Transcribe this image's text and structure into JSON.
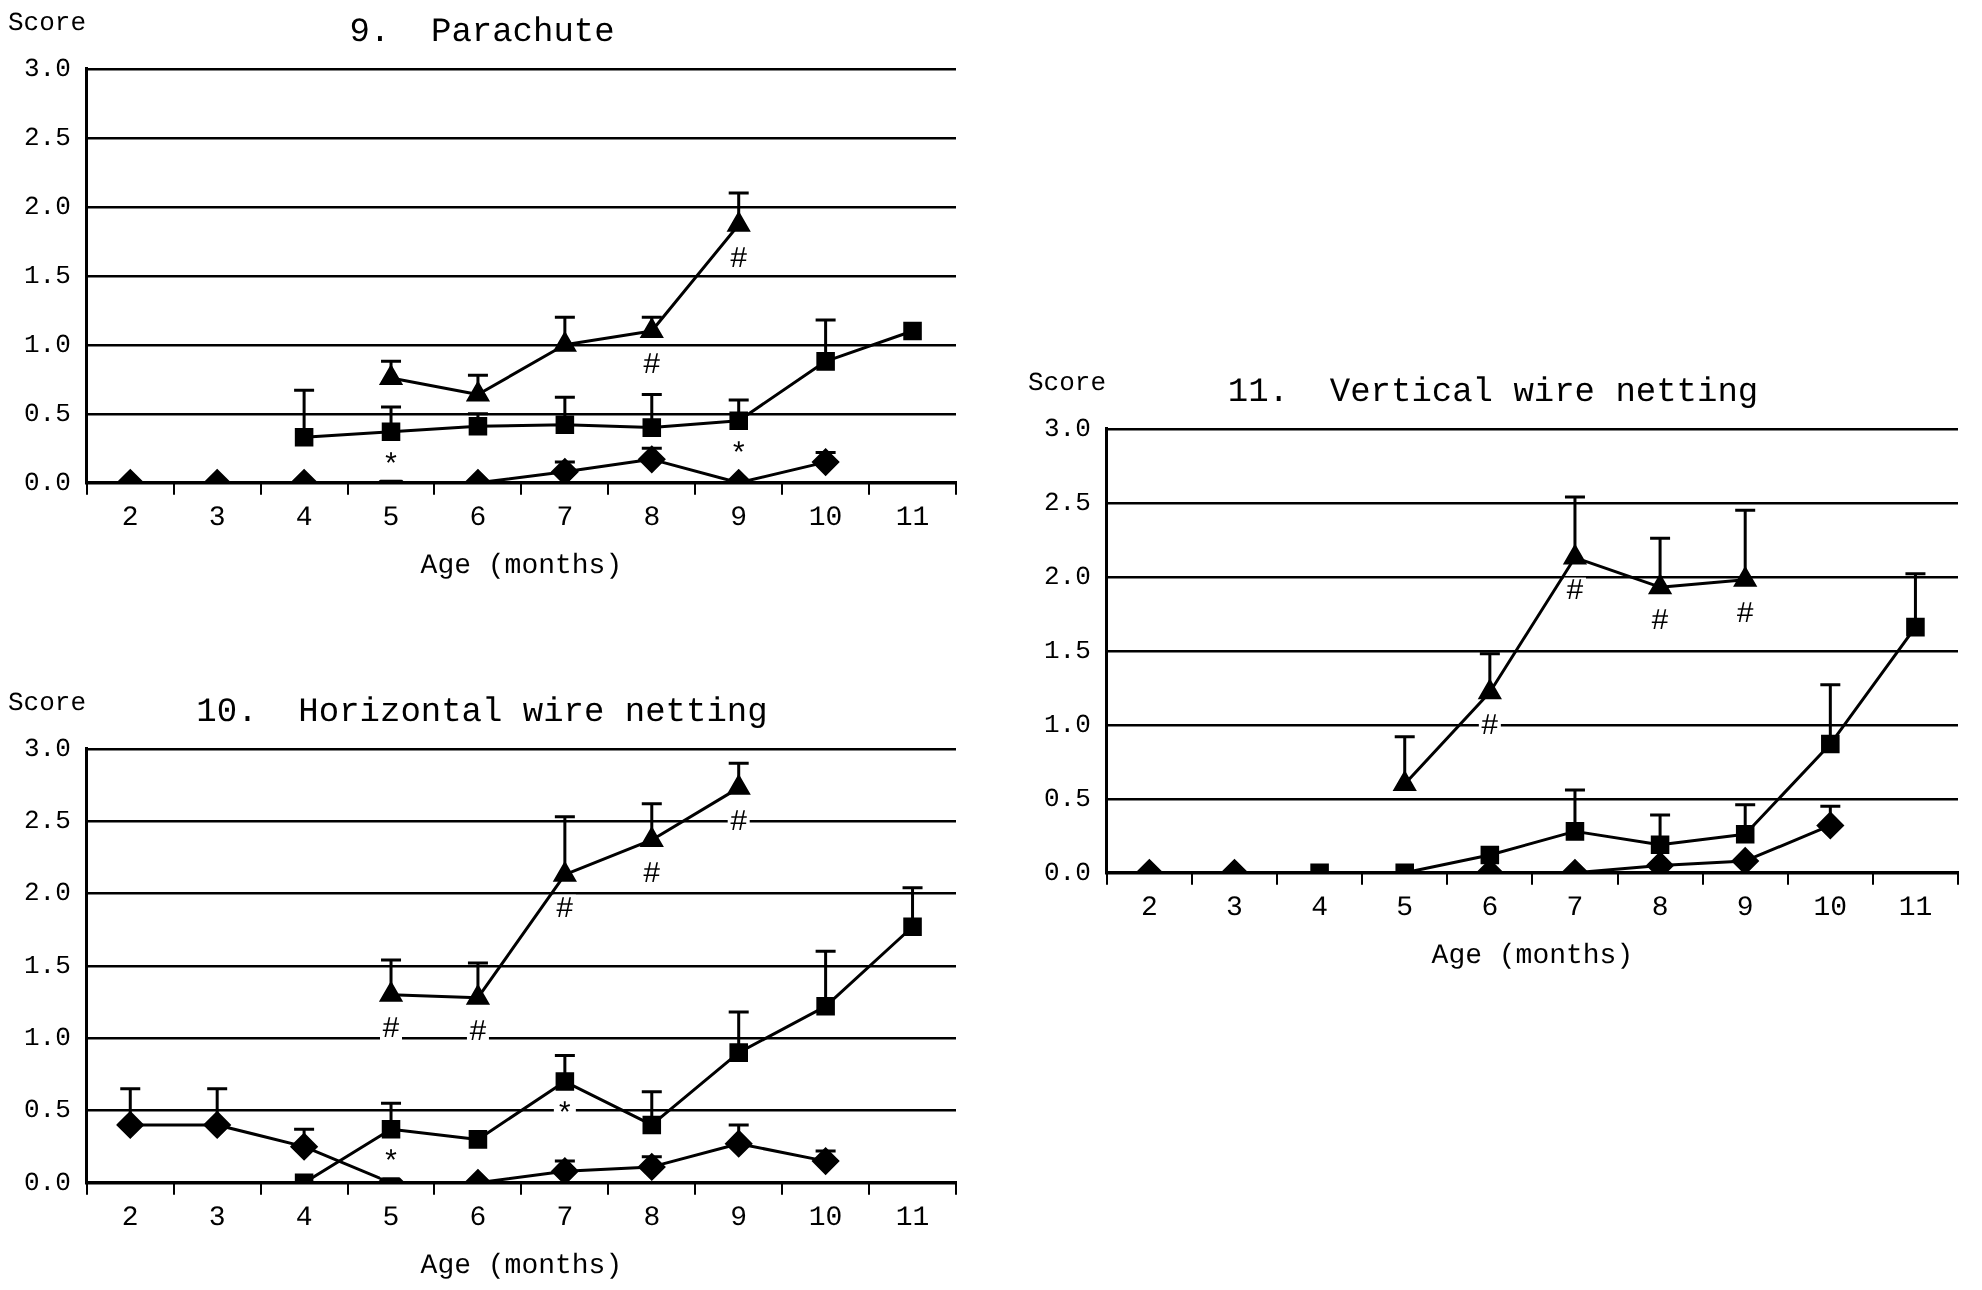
{
  "chart_data": [
    {
      "type": "line",
      "title": "9.  Parachute",
      "ylabel": "Score",
      "xlabel": "Age (months)",
      "categories": [
        "2",
        "3",
        "4",
        "5",
        "6",
        "7",
        "8",
        "9",
        "10",
        "11"
      ],
      "ylim": [
        0,
        3
      ],
      "yticks": [
        {
          "value": 0,
          "label": "0.0"
        },
        {
          "value": 0.5,
          "label": "0.5"
        },
        {
          "value": 1,
          "label": "1.0"
        },
        {
          "value": 1.5,
          "label": "1.5"
        },
        {
          "value": 2,
          "label": "2.0"
        },
        {
          "value": 2.5,
          "label": "2.5"
        },
        {
          "value": 3,
          "label": "3.0"
        }
      ],
      "grid": "y",
      "legend": false,
      "series": [
        {
          "color": "#000000",
          "marker": "diamond",
          "values": [
            0,
            0,
            0,
            0,
            0,
            0.08,
            0.17,
            0,
            0.15,
            null
          ],
          "errors": [
            null,
            null,
            null,
            null,
            null,
            [
              0.08,
              0.15
            ],
            [
              0.17,
              0.25
            ],
            null,
            [
              0.15,
              0.22
            ],
            null
          ]
        },
        {
          "color": "#000000",
          "marker": "square",
          "values": [
            null,
            null,
            0.33,
            0.37,
            0.41,
            0.42,
            0.4,
            0.45,
            0.88,
            1.1
          ],
          "errors": [
            null,
            null,
            [
              0.33,
              0.67
            ],
            [
              0.37,
              0.55
            ],
            [
              0.41,
              0.5
            ],
            [
              0.42,
              0.62
            ],
            [
              0.4,
              0.64
            ],
            [
              0.45,
              0.6
            ],
            [
              0.88,
              1.18
            ],
            null
          ]
        },
        {
          "color": "#000000",
          "marker": "triangle",
          "values": [
            null,
            null,
            null,
            0.76,
            0.64,
            1.0,
            1.1,
            1.87,
            null,
            null
          ],
          "errors": [
            null,
            null,
            null,
            [
              0.76,
              0.88
            ],
            [
              0.64,
              0.78
            ],
            [
              1.0,
              1.2
            ],
            [
              1.1,
              1.2
            ],
            [
              1.87,
              2.1
            ],
            null,
            null
          ]
        }
      ],
      "annotations": [
        {
          "text": "*",
          "x": "5",
          "y": 0.37
        },
        {
          "text": "#",
          "x": "8",
          "y": 1.1
        },
        {
          "text": "#",
          "x": "9",
          "y": 1.87
        },
        {
          "text": "*",
          "x": "9",
          "y": 0.45
        }
      ]
    },
    {
      "type": "line",
      "title": "10.  Horizontal wire netting",
      "ylabel": "Score",
      "xlabel": "Age (months)",
      "categories": [
        "2",
        "3",
        "4",
        "5",
        "6",
        "7",
        "8",
        "9",
        "10",
        "11"
      ],
      "ylim": [
        0,
        3
      ],
      "yticks": [
        {
          "value": 0,
          "label": "0.0"
        },
        {
          "value": 0.5,
          "label": "0.5"
        },
        {
          "value": 1,
          "label": "1.0"
        },
        {
          "value": 1.5,
          "label": "1.5"
        },
        {
          "value": 2,
          "label": "2.0"
        },
        {
          "value": 2.5,
          "label": "2.5"
        },
        {
          "value": 3,
          "label": "3.0"
        }
      ],
      "grid": "y",
      "legend": false,
      "series": [
        {
          "color": "#000000",
          "marker": "diamond",
          "values": [
            0.4,
            0.4,
            0.25,
            0,
            0,
            0.08,
            0.11,
            0.27,
            0.15,
            null
          ],
          "errors": [
            [
              0.4,
              0.65
            ],
            [
              0.4,
              0.65
            ],
            [
              0.25,
              0.37
            ],
            null,
            null,
            [
              0.08,
              0.15
            ],
            [
              0.11,
              0.18
            ],
            [
              0.27,
              0.4
            ],
            [
              0.15,
              0.22
            ],
            null
          ]
        },
        {
          "color": "#000000",
          "marker": "square",
          "values": [
            null,
            null,
            0,
            0.37,
            0.3,
            0.7,
            0.4,
            0.9,
            1.22,
            1.77
          ],
          "errors": [
            null,
            null,
            null,
            [
              0.37,
              0.55
            ],
            null,
            [
              0.7,
              0.88
            ],
            [
              0.4,
              0.63
            ],
            [
              0.9,
              1.18
            ],
            [
              1.22,
              1.6
            ],
            [
              1.77,
              2.04
            ]
          ]
        },
        {
          "color": "#000000",
          "marker": "triangle",
          "values": [
            null,
            null,
            null,
            1.3,
            1.28,
            2.13,
            2.37,
            2.73,
            null,
            null
          ],
          "errors": [
            null,
            null,
            null,
            [
              1.3,
              1.54
            ],
            [
              1.28,
              1.52
            ],
            [
              2.13,
              2.53
            ],
            [
              2.37,
              2.62
            ],
            [
              2.73,
              2.9
            ],
            null,
            null
          ]
        }
      ],
      "annotations": [
        {
          "text": "#",
          "x": "5",
          "y": 1.3
        },
        {
          "text": "#",
          "x": "6",
          "y": 1.28
        },
        {
          "text": "#",
          "x": "7",
          "y": 2.13
        },
        {
          "text": "#",
          "x": "8",
          "y": 2.37
        },
        {
          "text": "#",
          "x": "9",
          "y": 2.73
        },
        {
          "text": "*",
          "x": "5",
          "y": 0.37
        },
        {
          "text": "*",
          "x": "7",
          "y": 0.7
        }
      ]
    },
    {
      "type": "line",
      "title": "11.  Vertical wire netting",
      "ylabel": "Score",
      "xlabel": "Age (months)",
      "categories": [
        "2",
        "3",
        "4",
        "5",
        "6",
        "7",
        "8",
        "9",
        "10",
        "11"
      ],
      "ylim": [
        0,
        3
      ],
      "yticks": [
        {
          "value": 0,
          "label": "0.0"
        },
        {
          "value": 0.5,
          "label": "0.5"
        },
        {
          "value": 1,
          "label": "1.0"
        },
        {
          "value": 1.5,
          "label": "1.5"
        },
        {
          "value": 2,
          "label": "2.0"
        },
        {
          "value": 2.5,
          "label": "2.5"
        },
        {
          "value": 3,
          "label": "3.0"
        }
      ],
      "grid": "y",
      "legend": false,
      "series": [
        {
          "color": "#000000",
          "marker": "diamond",
          "values": [
            0,
            0,
            null,
            null,
            0,
            0,
            0.05,
            0.08,
            0.32,
            null
          ],
          "errors": [
            null,
            null,
            null,
            null,
            null,
            null,
            null,
            null,
            [
              0.32,
              0.45
            ],
            null
          ]
        },
        {
          "color": "#000000",
          "marker": "square",
          "values": [
            null,
            null,
            0,
            0,
            0.12,
            0.28,
            0.19,
            0.26,
            0.87,
            1.66
          ],
          "errors": [
            null,
            null,
            null,
            null,
            null,
            [
              0.28,
              0.56
            ],
            [
              0.19,
              0.39
            ],
            [
              0.26,
              0.46
            ],
            [
              0.87,
              1.27
            ],
            [
              1.66,
              2.02
            ]
          ]
        },
        {
          "color": "#000000",
          "marker": "triangle",
          "values": [
            null,
            null,
            null,
            0.6,
            1.22,
            2.13,
            1.93,
            1.98,
            null,
            null
          ],
          "errors": [
            null,
            null,
            null,
            [
              0.6,
              0.92
            ],
            [
              1.22,
              1.48
            ],
            [
              2.13,
              2.54
            ],
            [
              1.93,
              2.26
            ],
            [
              1.98,
              2.45
            ],
            null,
            null
          ]
        }
      ],
      "annotations": [
        {
          "text": "#",
          "x": "6",
          "y": 1.22
        },
        {
          "text": "#",
          "x": "7",
          "y": 2.13
        },
        {
          "text": "#",
          "x": "8",
          "y": 1.93
        },
        {
          "text": "#",
          "x": "9",
          "y": 1.98
        }
      ]
    }
  ]
}
